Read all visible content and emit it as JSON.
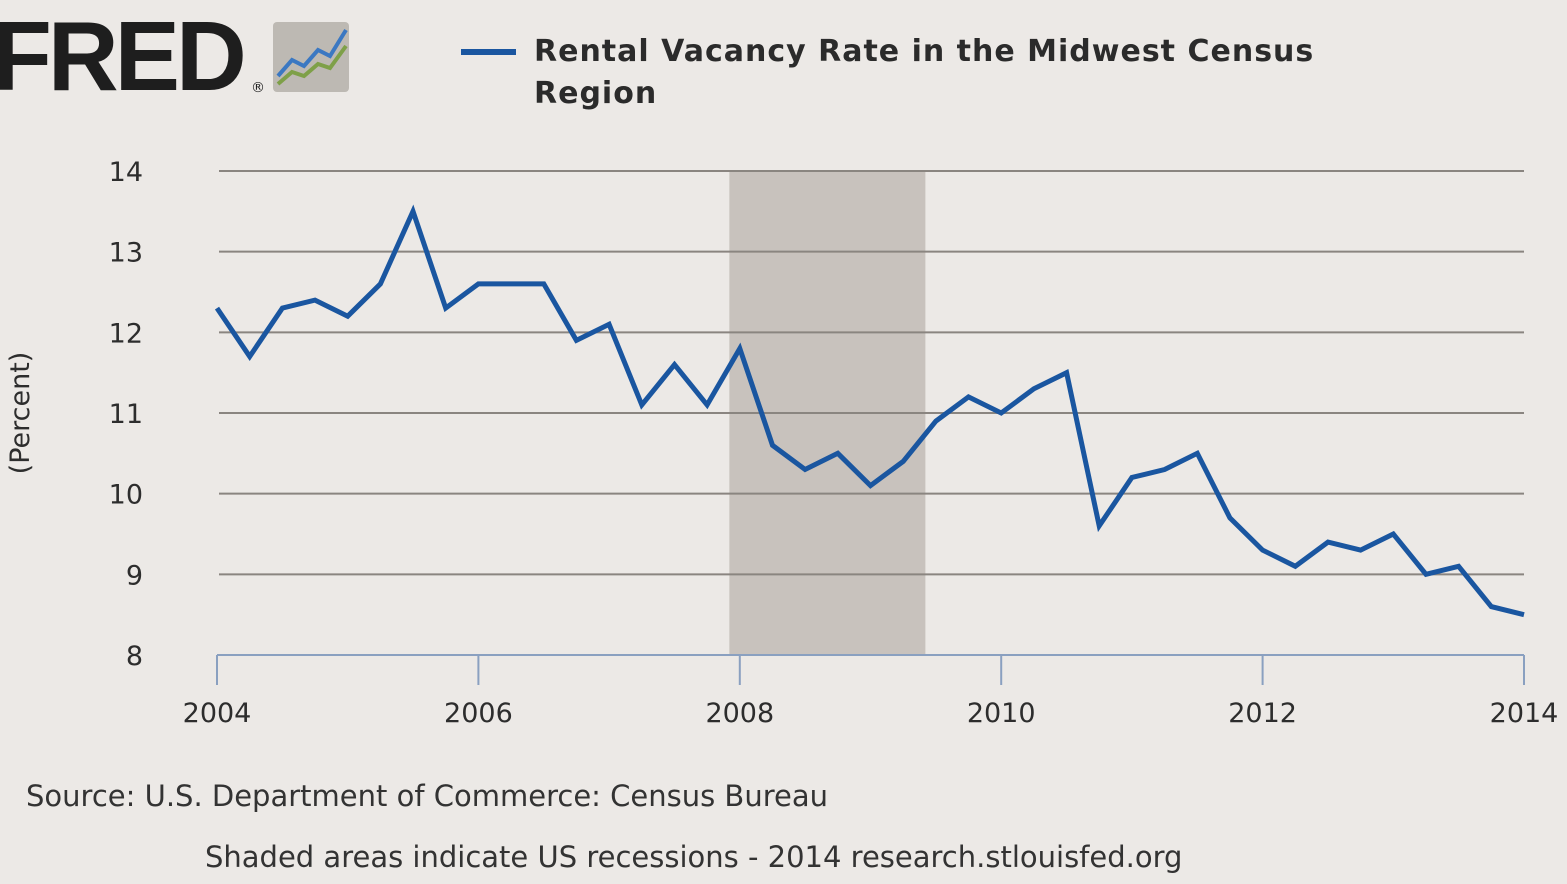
{
  "logo": {
    "text": "FRED",
    "registered": "®"
  },
  "legend": {
    "line1": "Rental Vacancy Rate in the Midwest Census",
    "line2": "Region"
  },
  "footer": {
    "source": "Source: U.S. Department of Commerce: Census Bureau",
    "note": "Shaded areas indicate US recessions - 2014 research.stlouisfed.org"
  },
  "colors": {
    "series": "#1a56a0",
    "recession": "#c8c2bd",
    "grid": "#8a8580",
    "axis": "#8aa0c0",
    "background": "#ece9e6"
  },
  "chart_data": {
    "type": "line",
    "title": "Rental Vacancy Rate in the Midwest Census Region",
    "ylabel": "(Percent)",
    "xlabel": "",
    "xlim": [
      2004.0,
      2014.0
    ],
    "ylim": [
      8,
      14
    ],
    "yticks": [
      8,
      9,
      10,
      11,
      12,
      13,
      14
    ],
    "xticks": [
      "2004",
      "2006",
      "2008",
      "2010",
      "2012",
      "2014"
    ],
    "grid": true,
    "legend_position": "top",
    "recessions": [
      {
        "start": 2007.92,
        "end": 2009.42
      }
    ],
    "series": [
      {
        "name": "Rental Vacancy Rate in the Midwest Census Region",
        "x": [
          2004.0,
          2004.25,
          2004.5,
          2004.75,
          2005.0,
          2005.25,
          2005.5,
          2005.75,
          2006.0,
          2006.25,
          2006.5,
          2006.75,
          2007.0,
          2007.25,
          2007.5,
          2007.75,
          2008.0,
          2008.25,
          2008.5,
          2008.75,
          2009.0,
          2009.25,
          2009.5,
          2009.75,
          2010.0,
          2010.25,
          2010.5,
          2010.75,
          2011.0,
          2011.25,
          2011.5,
          2011.75,
          2012.0,
          2012.25,
          2012.5,
          2012.75,
          2013.0,
          2013.25,
          2013.5,
          2013.75,
          2014.0
        ],
        "values": [
          12.3,
          11.7,
          12.3,
          12.4,
          12.2,
          12.6,
          13.5,
          12.3,
          12.6,
          12.6,
          12.6,
          11.9,
          12.1,
          11.1,
          11.6,
          11.1,
          11.8,
          10.6,
          10.3,
          10.5,
          10.1,
          10.4,
          10.9,
          11.2,
          11.0,
          11.3,
          11.5,
          9.6,
          10.2,
          10.3,
          10.5,
          9.7,
          9.3,
          9.1,
          9.4,
          9.3,
          9.5,
          9.0,
          9.1,
          8.6,
          8.5
        ]
      }
    ]
  }
}
